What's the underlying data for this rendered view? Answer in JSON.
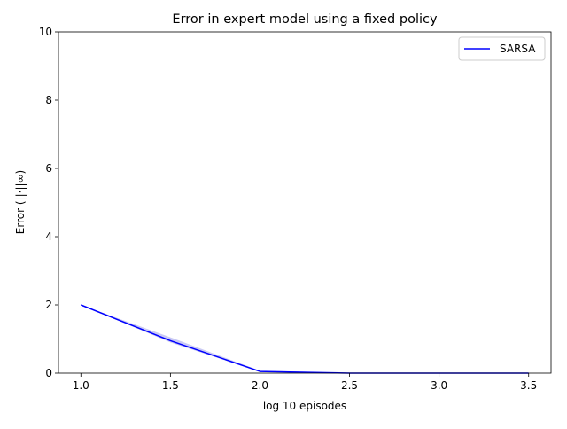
{
  "chart_data": {
    "type": "line",
    "title": "Error in expert model using a fixed policy",
    "xlabel": "log 10 episodes",
    "ylabel": "Error (||·||∞)",
    "xlim": [
      0.875,
      3.625
    ],
    "ylim": [
      0,
      10
    ],
    "xticks": [
      "1.0",
      "1.5",
      "2.0",
      "2.5",
      "3.0",
      "3.5"
    ],
    "yticks": [
      "0",
      "2",
      "4",
      "6",
      "8",
      "10"
    ],
    "legend_position": "top-right",
    "series": [
      {
        "name": "SARSA",
        "color": "#0000ff",
        "band_color": "#b8b8f0",
        "x": [
          1.0,
          1.5,
          2.0,
          2.5,
          3.0,
          3.5
        ],
        "y": [
          2.0,
          0.95,
          0.05,
          0.0,
          0.0,
          0.0
        ],
        "lower": [
          2.0,
          0.9,
          0.04,
          0.0,
          0.0,
          0.0
        ],
        "upper": [
          2.0,
          1.05,
          0.07,
          0.01,
          0.0,
          0.0
        ]
      }
    ]
  }
}
